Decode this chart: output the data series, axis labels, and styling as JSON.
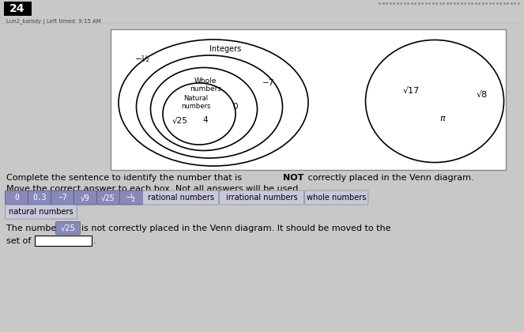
{
  "title_num": "24",
  "subtitle": "Lun2_kamdy | Left timed: 9:15 AM",
  "bg_color": "#c8c8c8",
  "venn_bg": "#ffffff",
  "chip_labels": [
    "0",
    "0.3",
    "−7",
    "√9",
    "√25",
    "−½"
  ],
  "word_chips": [
    "rational numbers",
    "irrational numbers",
    "whole numbers"
  ],
  "word_chip2": "natural numbers",
  "venn_labels": {
    "integers": "Integers",
    "whole": "Whole\nnumbers",
    "natural": "Natural\nnumbers",
    "neg_half": "−½",
    "neg7": "−7",
    "zero": "0",
    "four": "4",
    "sqrt25": "√25",
    "sqrt17": "√17",
    "sqrt8": "√8",
    "pi": "π"
  },
  "chip_color": "#8888bb",
  "word_chip_color": "#c8c8dd",
  "word_chip_edge": "#888899"
}
